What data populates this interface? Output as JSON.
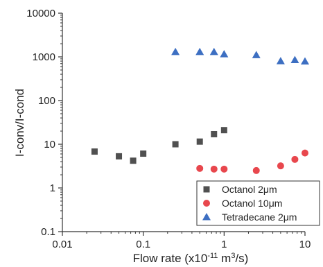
{
  "chart_data": {
    "type": "scatter",
    "title": "",
    "xlabel": "Flow rate (x10",
    "xlabel_exp": "-11",
    "xlabel_mid": " m",
    "xlabel_exp2": "3",
    "xlabel_end": "/s)",
    "ylabel": "I-conv/I-cond",
    "x_scale": "log",
    "y_scale": "log",
    "xlim": [
      0.01,
      10
    ],
    "ylim": [
      0.1,
      10000
    ],
    "x_ticks": [
      0.01,
      0.1,
      1,
      10
    ],
    "x_tick_labels": [
      "0.01",
      "0.1",
      "1",
      "10"
    ],
    "y_ticks": [
      0.1,
      1,
      10,
      100,
      1000,
      10000
    ],
    "y_tick_labels": [
      "0.1",
      "1",
      "10",
      "100",
      "1000",
      "10000"
    ],
    "grid": false,
    "legend_position": "bottom-right",
    "series": [
      {
        "name": "Octanol 2μm",
        "marker": "square",
        "color": "#505050",
        "x": [
          0.025,
          0.05,
          0.075,
          0.1,
          0.25,
          0.5,
          0.75,
          1.0
        ],
        "y": [
          6.8,
          5.3,
          4.2,
          6.1,
          10,
          11.5,
          17,
          21
        ]
      },
      {
        "name": "Octanol 10μm",
        "marker": "circle",
        "color": "#e8474d",
        "x": [
          0.5,
          0.75,
          1.0,
          2.5,
          5,
          7.5,
          10
        ],
        "y": [
          2.8,
          2.7,
          2.7,
          2.5,
          3.2,
          4.5,
          6.3
        ]
      },
      {
        "name": "Tetradecane 2μm",
        "marker": "triangle",
        "color": "#3d6fc2",
        "x": [
          0.25,
          0.5,
          0.75,
          1.0,
          2.5,
          5,
          7.5,
          10
        ],
        "y": [
          1300,
          1300,
          1300,
          1150,
          1100,
          800,
          850,
          790
        ]
      }
    ]
  }
}
